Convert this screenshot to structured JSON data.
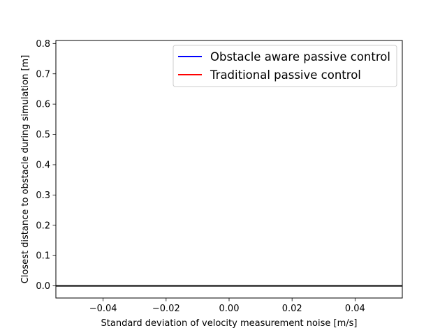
{
  "chart_data": {
    "type": "line",
    "title": "",
    "xlabel": "Standard deviation of velocity measurement noise [m/s]",
    "ylabel": "Closest distance to obstacle during simulation [m]",
    "xlim": [
      -0.055,
      0.055
    ],
    "ylim": [
      -0.04,
      0.81
    ],
    "x_ticks": [
      -0.04,
      -0.02,
      0.0,
      0.02,
      0.04
    ],
    "x_tick_labels": [
      "−0.04",
      "−0.02",
      "0.00",
      "0.02",
      "0.04"
    ],
    "y_ticks": [
      0.0,
      0.1,
      0.2,
      0.3,
      0.4,
      0.5,
      0.6,
      0.7,
      0.8
    ],
    "y_tick_labels": [
      "0.0",
      "0.1",
      "0.2",
      "0.3",
      "0.4",
      "0.5",
      "0.6",
      "0.7",
      "0.8"
    ],
    "grid": false,
    "legend_position": "top-right",
    "series": [
      {
        "name": "Obstacle aware passive control",
        "color": "#0000ff",
        "x": [],
        "y": []
      },
      {
        "name": "Traditional passive control",
        "color": "#ff0000",
        "x": [],
        "y": []
      }
    ],
    "reference_lines": [
      {
        "orientation": "horizontal",
        "y": 0.0,
        "color": "#000000"
      }
    ]
  }
}
